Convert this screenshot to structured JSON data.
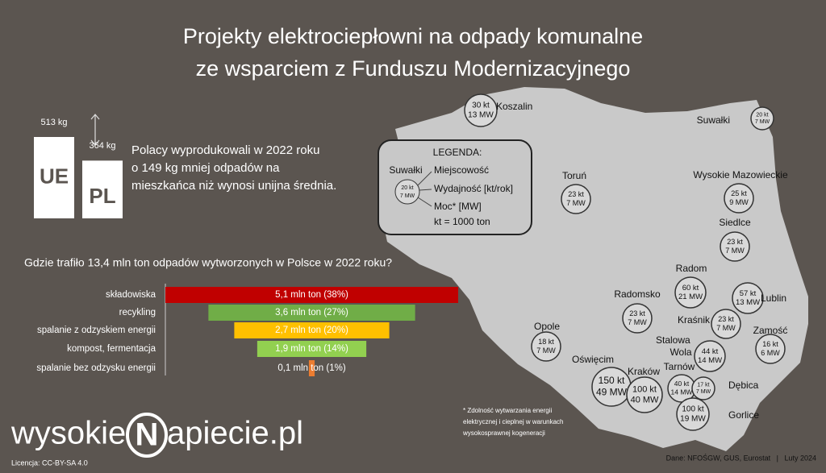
{
  "title": [
    "Projekty elektrociepłowni na odpady komunalne",
    "ze wsparciem z Funduszu Modernizacyjnego"
  ],
  "comparison": {
    "bars": [
      {
        "name": "UE",
        "value": 513,
        "value_label": "513 kg"
      },
      {
        "name": "PL",
        "value": 364,
        "value_label": "364 kg"
      }
    ],
    "text": [
      "Polacy wyprodukowali w 2022 roku",
      "o 149 kg mniej odpadów na",
      "mieszkańca niż wynosi unijna średnia."
    ]
  },
  "legend": {
    "title": "LEGENDA:",
    "sample_place": "Suwałki",
    "sample_capacity": "20 kt",
    "sample_power": "7 MW",
    "items": [
      "Miejscowość",
      "Wydajność [kt/rok]",
      "Moc* [MW]",
      "kt = 1000 ton"
    ]
  },
  "chart_data": {
    "type": "bar",
    "title": "Gdzie trafiło 13,4 mln ton odpadów wytworzonych w Polsce w 2022 roku?",
    "categories": [
      "składowiska",
      "recykling",
      "spalanie z odzyskiem energii",
      "kompost, fermentacja",
      "spalanie bez odzysku energii"
    ],
    "values": [
      5.1,
      3.6,
      2.7,
      1.9,
      0.1
    ],
    "value_labels": [
      "5,1 mln ton (38%)",
      "3,6 mln ton (27%)",
      "2,7 mln ton (20%)",
      "1,9 mln ton (14%)",
      "0,1 mln ton (1%)"
    ],
    "colors": [
      "#c00000",
      "#70ad47",
      "#ffc000",
      "#92d050",
      "#ed7d31"
    ]
  },
  "plants": [
    {
      "name": "Koszalin",
      "capacity": "30 kt",
      "power": "13 MW"
    },
    {
      "name": "Suwałki",
      "capacity": "20 kt",
      "power": "7 MW"
    },
    {
      "name": "Toruń",
      "capacity": "23 kt",
      "power": "7 MW"
    },
    {
      "name": "Wysokie Mazowieckie",
      "capacity": "25 kt",
      "power": "9 MW"
    },
    {
      "name": "Siedlce",
      "capacity": "23 kt",
      "power": "7 MW"
    },
    {
      "name": "Radom",
      "capacity": "60 kt",
      "power": "21 MW"
    },
    {
      "name": "Lublin",
      "capacity": "57 kt",
      "power": "13 MW"
    },
    {
      "name": "Radomsko",
      "capacity": "23 kt",
      "power": "7 MW"
    },
    {
      "name": "Kraśnik",
      "capacity": "23 kt",
      "power": "7 MW"
    },
    {
      "name": "Zamość",
      "capacity": "16 kt",
      "power": "6 MW"
    },
    {
      "name": "Opole",
      "capacity": "18 kt",
      "power": "7 MW"
    },
    {
      "name": "Stalowa Wola",
      "capacity": "44 kt",
      "power": "14 MW"
    },
    {
      "name": "Oświęcim",
      "capacity": "150 kt",
      "power": "49 MW"
    },
    {
      "name": "Kraków",
      "capacity": "100 kt",
      "power": "40 MW"
    },
    {
      "name": "Tarnów",
      "capacity": "40 kt",
      "power": "14 MW"
    },
    {
      "name": "Dębica",
      "capacity": "17 kt",
      "power": "7 MW"
    },
    {
      "name": "Gorlice",
      "capacity": "100 kt",
      "power": "19 MW"
    }
  ],
  "footnote": [
    "* Zdolność wytwarzania energii",
    "elektrycznej i cieplnej w warunkach",
    "wysokosprawnej kogeneracji"
  ],
  "source": "Dane: NFOŚGW, GUS, Eurostat   |   Luty 2024",
  "logo": [
    "wysokie",
    "N",
    "apiecie.pl"
  ],
  "license": "Licencja: CC-BY-SA 4.0"
}
